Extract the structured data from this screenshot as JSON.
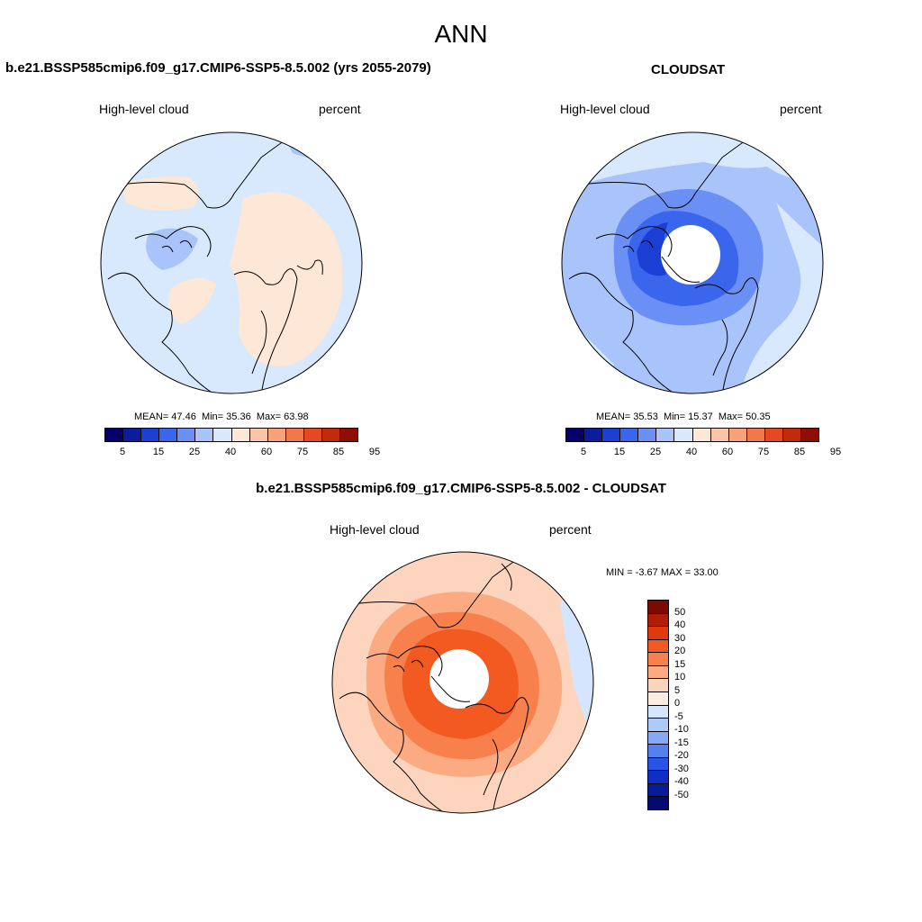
{
  "title": "ANN",
  "panels": [
    {
      "title": "b.e21.BSSP585cmip6.f09_g17.CMIP6-SSP5-8.5.002 (yrs 2055-2079)",
      "variable": "High-level cloud",
      "units": "percent",
      "stats": {
        "mean_label": "MEAN=",
        "mean": "47.46",
        "min_label": "Min=",
        "min": "35.36",
        "max_label": "Max=",
        "max": "63.98"
      }
    },
    {
      "title": "CLOUDSAT",
      "variable": "High-level cloud",
      "units": "percent",
      "stats": {
        "mean_label": "MEAN=",
        "mean": "35.53",
        "min_label": "Min=",
        "min": "15.37",
        "max_label": "Max=",
        "max": "50.35"
      }
    }
  ],
  "diff_panel": {
    "title": "b.e21.BSSP585cmip6.f09_g17.CMIP6-SSP5-8.5.002 - CLOUDSAT",
    "variable": "High-level cloud",
    "units": "percent",
    "stats": {
      "min_label": "MIN =",
      "min": "-3.67",
      "max_label": "MAX =",
      "max": "33.00"
    }
  },
  "colorbar_main": {
    "colors": [
      "#08006a",
      "#0a1e9c",
      "#1a3fd2",
      "#3a66ee",
      "#6b90f5",
      "#a9c3fb",
      "#d8e8fd",
      "#fde7d6",
      "#fcc5a8",
      "#f8a07a",
      "#f2764c",
      "#e34a24",
      "#c22a0e",
      "#8e0d04"
    ],
    "labels": [
      "5",
      "15",
      "25",
      "40",
      "60",
      "75",
      "85",
      "95"
    ]
  },
  "colorbar_diff": {
    "colors": [
      "#7a0a04",
      "#b11c06",
      "#de3a0e",
      "#f25a22",
      "#f8804c",
      "#fbaa82",
      "#fdd5bf",
      "#fdece0",
      "#d5e5fd",
      "#aecafb",
      "#85a9f6",
      "#5680f1",
      "#2952e6",
      "#0e2ec4",
      "#071c99",
      "#050a6e"
    ],
    "labels": [
      "50",
      "40",
      "30",
      "20",
      "15",
      "10",
      "5",
      "0",
      "-5",
      "-10",
      "-15",
      "-20",
      "-30",
      "-40",
      "-50"
    ]
  },
  "map_colors": {
    "panel1_base": "#d8e8fd",
    "panel1_warm": "#fde7d6",
    "panel1_cool": "#a9c3fb",
    "panel2_base": "#a9c3fb",
    "panel2_light": "#d8e8fd",
    "panel2_mid": "#6b90f5",
    "panel2_dark": "#3a66ee",
    "panel2_darkest": "#1a3fd2",
    "diff_outer": "#fdd5bf",
    "diff_mid": "#fbaa82",
    "diff_inner": "#f8804c",
    "diff_core": "#f25a22",
    "diff_edge": "#d5e5fd"
  }
}
